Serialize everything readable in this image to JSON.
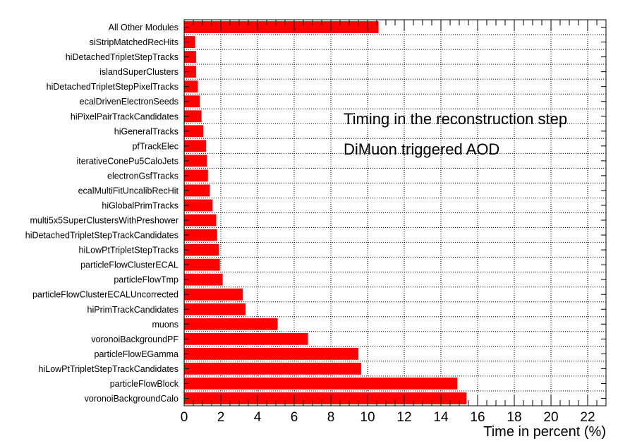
{
  "chart_data": {
    "type": "bar",
    "orientation": "horizontal",
    "categories": [
      "voronoiBackgroundCalo",
      "particleFlowBlock",
      "hiLowPtTripletStepTrackCandidates",
      "particleFlowEGamma",
      "voronoiBackgroundPF",
      "muons",
      "hiPrimTrackCandidates",
      "particleFlowClusterECALUncorrected",
      "particleFlowTmp",
      "particleFlowClusterECAL",
      "hiLowPtTripletStepTracks",
      "hiDetachedTripletStepTrackCandidates",
      "multi5x5SuperClustersWithPreshower",
      "hiGlobalPrimTracks",
      "ecalMultiFitUncalibRecHit",
      "electronGsfTracks",
      "iterativeConePu5CaloJets",
      "pfTrackElec",
      "hiGeneralTracks",
      "hiPixelPairTrackCandidates",
      "ecalDrivenElectronSeeds",
      "hiDetachedTripletStepPixelTracks",
      "islandSuperClusters",
      "hiDetachedTripletStepTracks",
      "siStripMatchedRecHits",
      "All Other Modules"
    ],
    "values": [
      15.4,
      14.9,
      9.65,
      9.5,
      6.75,
      5.1,
      3.35,
      3.2,
      2.1,
      1.95,
      1.9,
      1.8,
      1.75,
      1.55,
      1.4,
      1.3,
      1.25,
      1.2,
      1.05,
      0.95,
      0.85,
      0.75,
      0.65,
      0.65,
      0.6,
      10.6
    ],
    "bar_color": "#ff0000",
    "xlabel": "Time in percent (%)",
    "ylabel": "",
    "xlim": [
      0,
      23
    ],
    "x_ticks": [
      "0",
      "2",
      "4",
      "6",
      "8",
      "10",
      "12",
      "14",
      "16",
      "18",
      "20",
      "22"
    ],
    "x_tick_values": [
      0,
      2,
      4,
      6,
      8,
      10,
      12,
      14,
      16,
      18,
      20,
      22
    ],
    "grid": true,
    "annotations": [
      "Timing in the reconstruction step",
      "DiMuon triggered AOD"
    ]
  }
}
